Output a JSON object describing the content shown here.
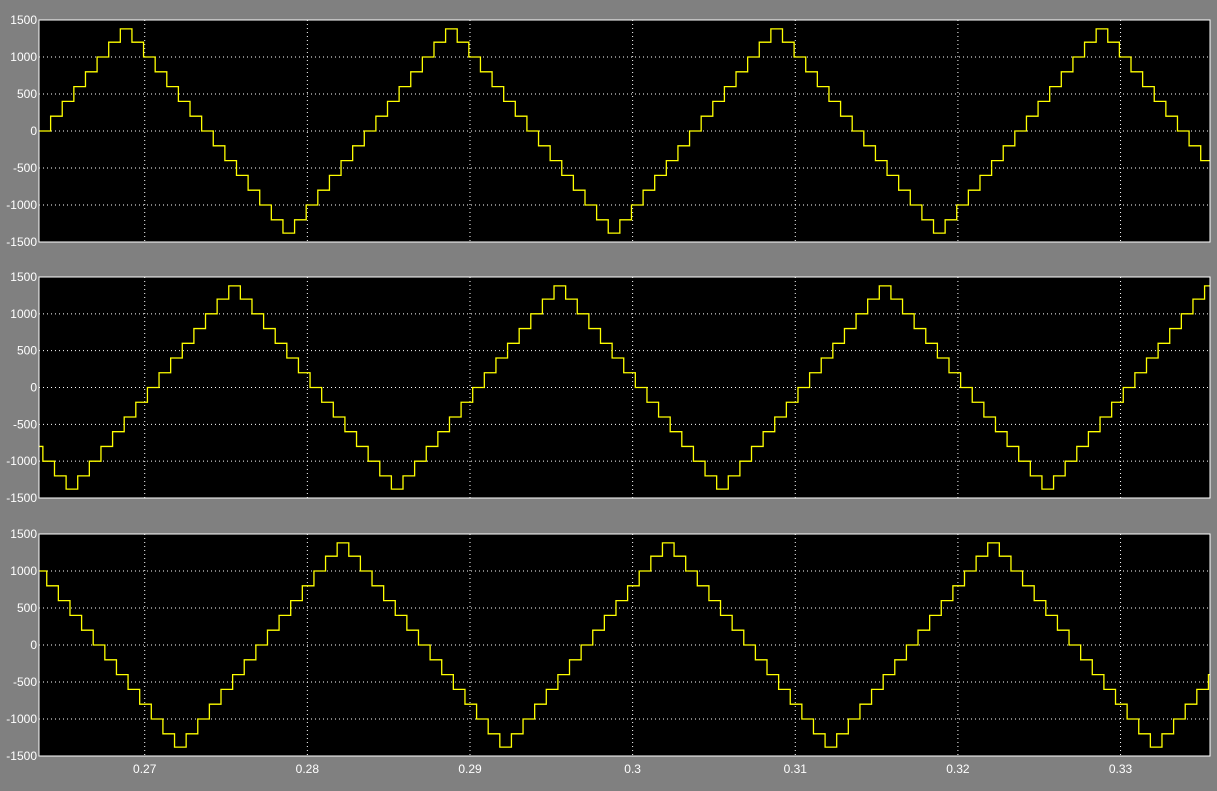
{
  "window": {
    "background_color": "#808080",
    "axes_background_color": "#000000",
    "axes_frame_color": "#ffffff",
    "grid_color": "#ffffff",
    "signal_color": "#ffff00"
  },
  "chart_data": [
    {
      "type": "line",
      "title": "",
      "xlabel": "",
      "ylabel": "",
      "xlim": [
        0.2635,
        0.3355
      ],
      "ylim": [
        -1500,
        1500
      ],
      "grid": true,
      "xticks": [
        0.27,
        0.28,
        0.29,
        0.3,
        0.31,
        0.32,
        0.33
      ],
      "xtick_labels": [],
      "yticks": [
        1500,
        1000,
        500,
        0,
        -500,
        -1000,
        -1500
      ],
      "ytick_labels": [
        "1500",
        "1000",
        "500",
        "0",
        "-500",
        "-1000",
        "-1500"
      ],
      "series": [
        {
          "style": "staircase",
          "period": 0.02,
          "phase_shift": 0.0,
          "step_levels": [
            0,
            200,
            400,
            600,
            800,
            1000,
            1200,
            1380,
            1200,
            1000,
            800,
            600,
            400,
            200,
            0,
            -200,
            -400,
            -600,
            -800,
            -1000,
            -1200,
            -1380,
            -1200,
            -1000,
            -800,
            -600,
            -400,
            -200
          ],
          "x": [
            0.265,
            0.27,
            0.275,
            0.28,
            0.285,
            0.29,
            0.295,
            0.3,
            0.305,
            0.31,
            0.315,
            0.32,
            0.325,
            0.33,
            0.335
          ],
          "y": [
            1380,
            0,
            -1380,
            0,
            1380,
            0,
            -1380,
            0,
            1380,
            0,
            -1380,
            0,
            1380,
            0,
            -1380
          ]
        }
      ]
    },
    {
      "type": "line",
      "title": "",
      "xlabel": "",
      "ylabel": "",
      "xlim": [
        0.2635,
        0.3355
      ],
      "ylim": [
        -1500,
        1500
      ],
      "grid": true,
      "xticks": [
        0.27,
        0.28,
        0.29,
        0.3,
        0.31,
        0.32,
        0.33
      ],
      "xtick_labels": [],
      "yticks": [
        1500,
        1000,
        500,
        0,
        -500,
        -1000,
        -1500
      ],
      "ytick_labels": [
        "1500",
        "1000",
        "500",
        "0",
        "-500",
        "-1000",
        "-1500"
      ],
      "series": [
        {
          "style": "staircase",
          "period": 0.02,
          "phase_shift": 0.0066667,
          "step_levels": [
            0,
            200,
            400,
            600,
            800,
            1000,
            1200,
            1380,
            1200,
            1000,
            800,
            600,
            400,
            200,
            0,
            -200,
            -400,
            -600,
            -800,
            -1000,
            -1200,
            -1380,
            -1200,
            -1000,
            -800,
            -600,
            -400,
            -200
          ],
          "x": [
            0.2717,
            0.2767,
            0.2817,
            0.2867,
            0.2917,
            0.2967,
            0.3017,
            0.3067,
            0.3117,
            0.3167,
            0.3217,
            0.3267,
            0.3317
          ],
          "y": [
            1380,
            0,
            -1380,
            0,
            1380,
            0,
            -1380,
            0,
            1380,
            0,
            -1380,
            0,
            1380
          ]
        }
      ]
    },
    {
      "type": "line",
      "title": "",
      "xlabel": "",
      "ylabel": "",
      "xlim": [
        0.2635,
        0.3355
      ],
      "ylim": [
        -1500,
        1500
      ],
      "grid": true,
      "xticks": [
        0.27,
        0.28,
        0.29,
        0.3,
        0.31,
        0.32,
        0.33
      ],
      "xtick_labels": [
        "0.27",
        "0.28",
        "0.29",
        "0.3",
        "0.31",
        "0.32",
        "0.33"
      ],
      "yticks": [
        1500,
        1000,
        500,
        0,
        -500,
        -1000,
        -1500
      ],
      "ytick_labels": [
        "1500",
        "1000",
        "500",
        "0",
        "-500",
        "-1000",
        "-1500"
      ],
      "series": [
        {
          "style": "staircase",
          "period": 0.02,
          "phase_shift": 0.0133333,
          "step_levels": [
            0,
            200,
            400,
            600,
            800,
            1000,
            1200,
            1380,
            1200,
            1000,
            800,
            600,
            400,
            200,
            0,
            -200,
            -400,
            -600,
            -800,
            -1000,
            -1200,
            -1380,
            -1200,
            -1000,
            -800,
            -600,
            -400,
            -200
          ],
          "x": [
            0.2683,
            0.2733,
            0.2783,
            0.2833,
            0.2883,
            0.2933,
            0.2983,
            0.3033,
            0.3083,
            0.3133,
            0.3183,
            0.3233,
            0.3283,
            0.3333
          ],
          "y": [
            0,
            -1380,
            0,
            1380,
            0,
            -1380,
            0,
            1380,
            0,
            -1380,
            0,
            1380,
            0,
            -1380
          ]
        }
      ]
    }
  ]
}
